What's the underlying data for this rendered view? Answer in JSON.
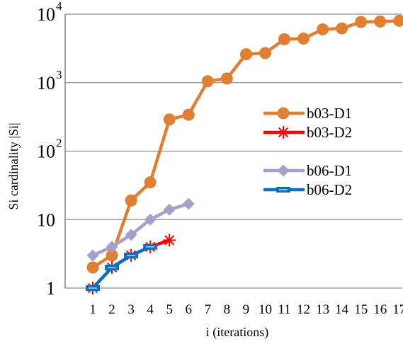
{
  "chart_data": {
    "type": "line",
    "title": "",
    "xlabel": "i (iterations)",
    "ylabel": "Si cardinality |Si|",
    "x_categories": [
      "1",
      "2",
      "3",
      "4",
      "5",
      "6",
      "7",
      "8",
      "9",
      "10",
      "11",
      "12",
      "13",
      "14",
      "15",
      "16",
      "17"
    ],
    "y_scale": "log",
    "ylim": [
      1,
      10000
    ],
    "y_ticks": [
      {
        "value": 1,
        "label": "1",
        "sup": ""
      },
      {
        "value": 10,
        "label": "10",
        "sup": ""
      },
      {
        "value": 100,
        "label": "10",
        "sup": "2"
      },
      {
        "value": 1000,
        "label": "10",
        "sup": "3"
      },
      {
        "value": 10000,
        "label": "10",
        "sup": "4"
      }
    ],
    "grid": "horizontal",
    "legend_position": "right",
    "series": [
      {
        "name": "b03-D1",
        "color": "#e07f32",
        "marker": "circle",
        "points": [
          [
            1,
            2
          ],
          [
            2,
            3
          ],
          [
            3,
            19
          ],
          [
            4,
            35
          ],
          [
            5,
            290
          ],
          [
            6,
            340
          ],
          [
            7,
            1050
          ],
          [
            8,
            1150
          ],
          [
            9,
            2600
          ],
          [
            10,
            2700
          ],
          [
            11,
            4300
          ],
          [
            12,
            4400
          ],
          [
            13,
            6000
          ],
          [
            14,
            6200
          ],
          [
            15,
            7700
          ],
          [
            16,
            7800
          ],
          [
            17,
            8000
          ]
        ]
      },
      {
        "name": "b03-D2",
        "color": "#ff0000",
        "marker": "asterisk",
        "points": [
          [
            1,
            1
          ],
          [
            2,
            2
          ],
          [
            3,
            3
          ],
          [
            4,
            4
          ],
          [
            5,
            5
          ]
        ]
      },
      {
        "name": "b06-D1",
        "color": "#a79ec9",
        "marker": "diamond",
        "points": [
          [
            1,
            3
          ],
          [
            2,
            4
          ],
          [
            3,
            6
          ],
          [
            4,
            10
          ],
          [
            5,
            14
          ],
          [
            6,
            17
          ]
        ]
      },
      {
        "name": "b06-D2",
        "color": "#0b6fbd",
        "marker": "dash",
        "points": [
          [
            1,
            1
          ],
          [
            2,
            2
          ],
          [
            3,
            3
          ],
          [
            4,
            4
          ]
        ]
      }
    ]
  }
}
